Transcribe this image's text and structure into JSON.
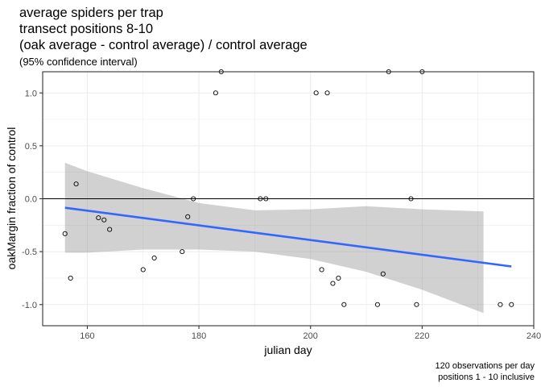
{
  "chart_data": {
    "type": "scatter",
    "title_lines": [
      "average spiders per trap",
      "transect positions 8-10",
      "(oak average - control average) / control average"
    ],
    "subtitle": "(95% confidence interval)",
    "xlabel": "julian day",
    "ylabel": "oakMargin fraction of control",
    "caption_lines": [
      "120 observations per day",
      "positions 1 - 10 inclusive"
    ],
    "xlim": [
      152,
      240
    ],
    "ylim": [
      -1.2,
      1.2
    ],
    "x_ticks": [
      160,
      180,
      200,
      220,
      240
    ],
    "y_ticks": [
      -1.0,
      -0.5,
      0.0,
      0.5,
      1.0
    ],
    "x_tick_labels": [
      "160",
      "180",
      "200",
      "220",
      "240"
    ],
    "y_tick_labels": [
      "-1.0",
      "-0.5",
      "0.0",
      "0.5",
      "1.0"
    ],
    "grid": true,
    "reference_line_y": 0,
    "points": [
      {
        "x": 156,
        "y": -0.33
      },
      {
        "x": 157,
        "y": -0.75
      },
      {
        "x": 158,
        "y": 0.14
      },
      {
        "x": 162,
        "y": -0.18
      },
      {
        "x": 163,
        "y": -0.2
      },
      {
        "x": 164,
        "y": -0.29
      },
      {
        "x": 170,
        "y": -0.67
      },
      {
        "x": 172,
        "y": -0.56
      },
      {
        "x": 177,
        "y": -0.5
      },
      {
        "x": 178,
        "y": -0.17
      },
      {
        "x": 179,
        "y": 0.0
      },
      {
        "x": 183,
        "y": 1.0
      },
      {
        "x": 184,
        "y": 1.2
      },
      {
        "x": 191,
        "y": 0.0
      },
      {
        "x": 192,
        "y": 0.0
      },
      {
        "x": 201,
        "y": 1.0
      },
      {
        "x": 202,
        "y": -0.67
      },
      {
        "x": 203,
        "y": 1.0
      },
      {
        "x": 204,
        "y": -0.8
      },
      {
        "x": 205,
        "y": -0.75
      },
      {
        "x": 206,
        "y": -1.0
      },
      {
        "x": 212,
        "y": -1.0
      },
      {
        "x": 213,
        "y": -0.71
      },
      {
        "x": 214,
        "y": 1.2
      },
      {
        "x": 218,
        "y": 0.0
      },
      {
        "x": 219,
        "y": -1.0
      },
      {
        "x": 220,
        "y": 1.2
      },
      {
        "x": 234,
        "y": -1.0
      },
      {
        "x": 236,
        "y": -1.0
      }
    ],
    "fit_line": {
      "x": [
        156,
        236
      ],
      "y": [
        -0.085,
        -0.64
      ]
    },
    "confidence_band": {
      "x": [
        156,
        160,
        170,
        180,
        190,
        200,
        210,
        220,
        231
      ],
      "upper": [
        0.34,
        0.26,
        0.1,
        -0.04,
        -0.11,
        -0.1,
        -0.07,
        -0.1,
        -0.12
      ],
      "lower": [
        -0.51,
        -0.51,
        -0.48,
        -0.48,
        -0.5,
        -0.57,
        -0.69,
        -0.86,
        -1.08
      ]
    },
    "colors": {
      "fit_line": "#3366FF",
      "band": "#999999",
      "grid": "#ebebeb",
      "panel_border": "#333333",
      "reference_line": "#000000"
    }
  }
}
